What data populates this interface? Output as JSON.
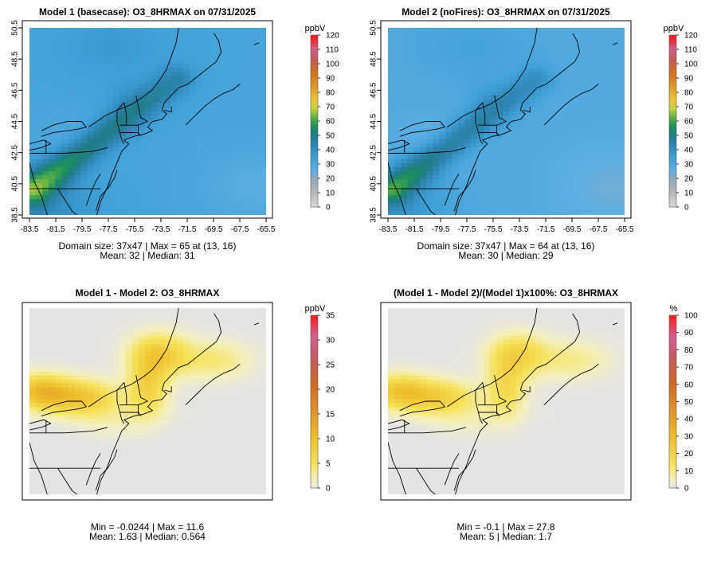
{
  "chart_data": [
    {
      "type": "heatmap",
      "title": "Model 1 (basecase): O3_8HRMAX on 07/31/2025",
      "variable": "O3_8HRMAX",
      "unit": "ppbV",
      "xlabel": "",
      "ylabel": "",
      "xlim": [
        -83.5,
        -65.5
      ],
      "ylim": [
        38.5,
        50.5
      ],
      "xticks": [
        "-83.5",
        "-81.5",
        "-79.5",
        "-77.5",
        "-75.5",
        "-73.5",
        "-71.5",
        "-69.5",
        "-67.5",
        "-65.5"
      ],
      "yticks": [
        "38.5",
        "40.5",
        "42.5",
        "44.5",
        "46.5",
        "48.5",
        "50.5"
      ],
      "colorbar": {
        "min": 0,
        "max": 120,
        "ticks": [
          "0",
          "10",
          "20",
          "30",
          "40",
          "50",
          "60",
          "70",
          "80",
          "90",
          "100",
          "110",
          "120"
        ]
      },
      "grid_size": [
        37,
        47
      ],
      "max": 65,
      "max_location": [
        13,
        16
      ],
      "mean": 32,
      "median": 31,
      "stats_line1": "Domain size: 37x47 | Max = 65 at (13, 16)",
      "stats_line2": "Mean: 32 |  Median: 31"
    },
    {
      "type": "heatmap",
      "title": "Model 2 (noFires): O3_8HRMAX on 07/31/2025",
      "variable": "O3_8HRMAX",
      "unit": "ppbV",
      "xlabel": "",
      "ylabel": "",
      "xlim": [
        -83.5,
        -65.5
      ],
      "ylim": [
        38.5,
        50.5
      ],
      "xticks": [
        "-83.5",
        "-81.5",
        "-79.5",
        "-77.5",
        "-75.5",
        "-73.5",
        "-71.5",
        "-69.5",
        "-67.5",
        "-65.5"
      ],
      "yticks": [
        "38.5",
        "40.5",
        "42.5",
        "44.5",
        "46.5",
        "48.5",
        "50.5"
      ],
      "colorbar": {
        "min": 0,
        "max": 120,
        "ticks": [
          "0",
          "10",
          "20",
          "30",
          "40",
          "50",
          "60",
          "70",
          "80",
          "90",
          "100",
          "110",
          "120"
        ]
      },
      "grid_size": [
        37,
        47
      ],
      "max": 64,
      "max_location": [
        13,
        16
      ],
      "mean": 30,
      "median": 29,
      "stats_line1": "Domain size: 37x47 | Max = 64 at (13, 16)",
      "stats_line2": "Mean: 30 |  Median: 29"
    },
    {
      "type": "heatmap",
      "title": "Model 1 - Model 2: O3_8HRMAX",
      "variable": "O3_8HRMAX",
      "unit": "ppbV",
      "colorbar": {
        "min": 0,
        "max": 35,
        "ticks": [
          "0",
          "5",
          "10",
          "15",
          "20",
          "25",
          "30",
          "35"
        ]
      },
      "min": -0.0244,
      "max": 11.6,
      "mean": 1.63,
      "median": 0.564,
      "stats_line1": "Min = -0.0244 | Max = 11.6",
      "stats_line2": "Mean: 1.63 |  Median: 0.564"
    },
    {
      "type": "heatmap",
      "title": "(Model 1 - Model 2)/(Model 1)x100%: O3_8HRMAX",
      "variable": "O3_8HRMAX",
      "unit": "%",
      "colorbar": {
        "min": 0,
        "max": 100,
        "ticks": [
          "0",
          "10",
          "20",
          "30",
          "40",
          "50",
          "60",
          "70",
          "80",
          "90",
          "100"
        ]
      },
      "min": -0.1,
      "max": 27.8,
      "mean": 5,
      "median": 1.7,
      "stats_line1": "Min = -0.1 | Max = 27.8",
      "stats_line2": "Mean: 5 |  Median: 1.7"
    }
  ]
}
